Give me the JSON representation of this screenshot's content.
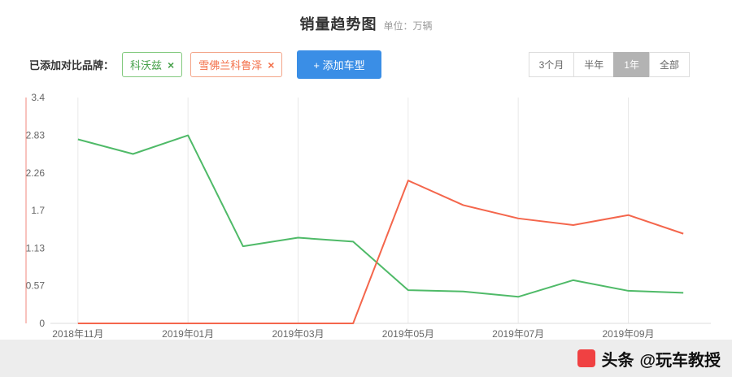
{
  "header": {
    "title": "销量趋势图",
    "unit": "单位：万辆"
  },
  "toolbar": {
    "compare_label": "已添加对比品牌：",
    "tags": [
      {
        "label": "科沃兹",
        "color": "#47a14b",
        "close_glyph": "×"
      },
      {
        "label": "雪佛兰科鲁泽",
        "color": "#f3704a",
        "close_glyph": "×"
      }
    ],
    "add_button": "+ 添加车型",
    "ranges": [
      {
        "label": "3个月",
        "active": false
      },
      {
        "label": "半年",
        "active": false
      },
      {
        "label": "1年",
        "active": true
      },
      {
        "label": "全部",
        "active": false
      }
    ]
  },
  "chart_data": {
    "type": "line",
    "title": "销量趋势图",
    "ylabel": "万辆",
    "ylim": [
      0,
      3.4
    ],
    "yticks": [
      0,
      0.57,
      1.13,
      1.7,
      2.26,
      2.83,
      3.4
    ],
    "grid": "vertical-only",
    "legend_position": "none",
    "categories": [
      "2018年11月",
      "2018年12月",
      "2019年01月",
      "2019年02月",
      "2019年03月",
      "2019年04月",
      "2019年05月",
      "2019年06月",
      "2019年07月",
      "2019年08月",
      "2019年09月",
      "2019年10月"
    ],
    "visible_tick_labels": [
      "2018年11月",
      "2019年01月",
      "2019年03月",
      "2019年05月",
      "2019年07月",
      "2019年09月"
    ],
    "series": [
      {
        "name": "科沃兹",
        "color": "#4fba68",
        "values": [
          2.77,
          2.55,
          2.83,
          1.16,
          1.29,
          1.23,
          0.5,
          0.48,
          0.4,
          0.65,
          0.49,
          0.46
        ]
      },
      {
        "name": "雪佛兰科鲁泽",
        "color": "#f4664c",
        "values": [
          0,
          0,
          0,
          0,
          0,
          0,
          2.15,
          1.78,
          1.58,
          1.48,
          1.63,
          1.35
        ]
      }
    ]
  },
  "watermark": {
    "brand": "头条",
    "account": "@玩车教授"
  }
}
